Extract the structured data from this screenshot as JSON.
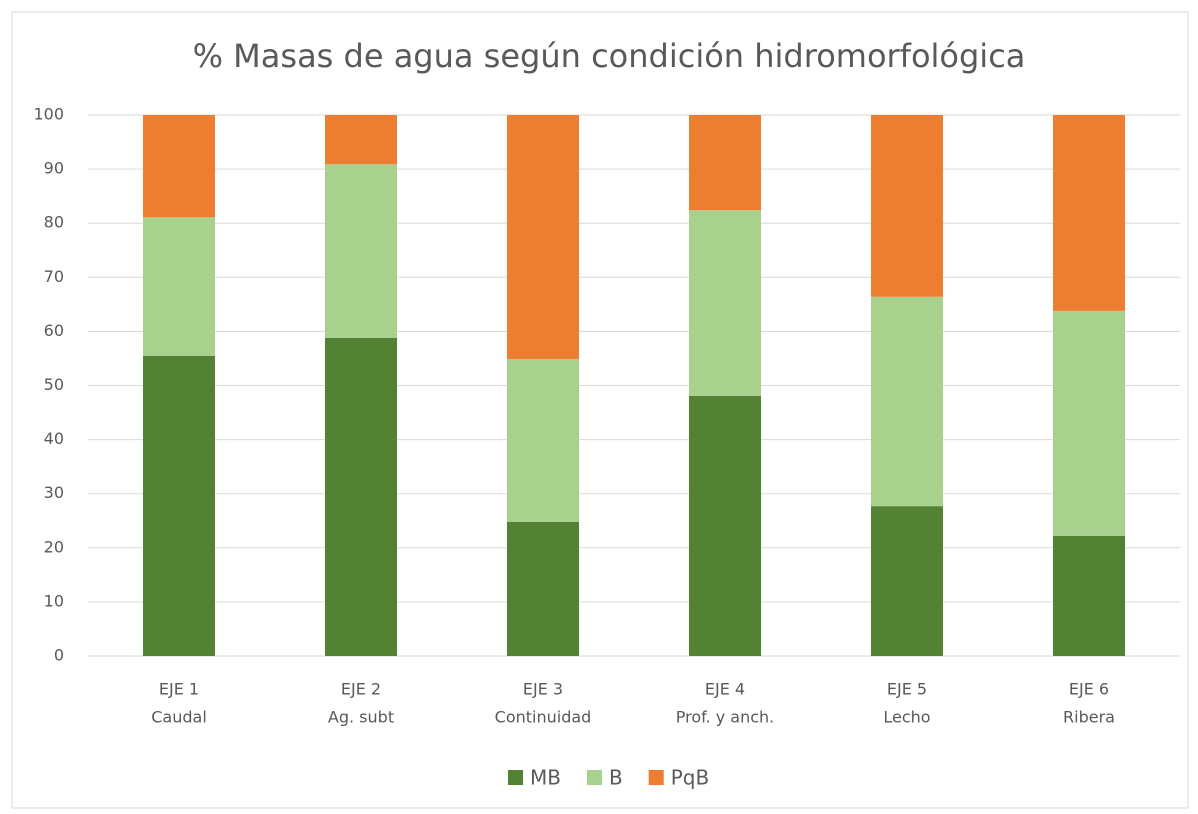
{
  "chart_data": {
    "type": "stacked_bar",
    "title": "% Masas de agua según condición hidromorfológica",
    "categories": [
      [
        "EJE 1",
        "Caudal"
      ],
      [
        "EJE 2",
        "Ag. subt"
      ],
      [
        "EJE 3",
        "Continuidad"
      ],
      [
        "EJE 4",
        "Prof. y anch."
      ],
      [
        "EJE 5",
        "Lecho"
      ],
      [
        "EJE 6",
        "Ribera"
      ]
    ],
    "series": [
      {
        "name": "MB",
        "color": "#548235",
        "values": [
          55.5,
          58.8,
          24.8,
          48.1,
          27.7,
          22.2
        ]
      },
      {
        "name": "B",
        "color": "#a9d18e",
        "values": [
          25.6,
          32.1,
          30.1,
          34.3,
          38.7,
          41.6
        ]
      },
      {
        "name": "PqB",
        "color": "#ed7d31",
        "values": [
          18.9,
          9.1,
          45.1,
          17.6,
          33.6,
          36.2
        ]
      }
    ],
    "ylim": [
      0,
      100
    ],
    "yticks": [
      0,
      10,
      20,
      30,
      40,
      50,
      60,
      70,
      80,
      90,
      100
    ],
    "grid": true,
    "legend": "bottom"
  }
}
